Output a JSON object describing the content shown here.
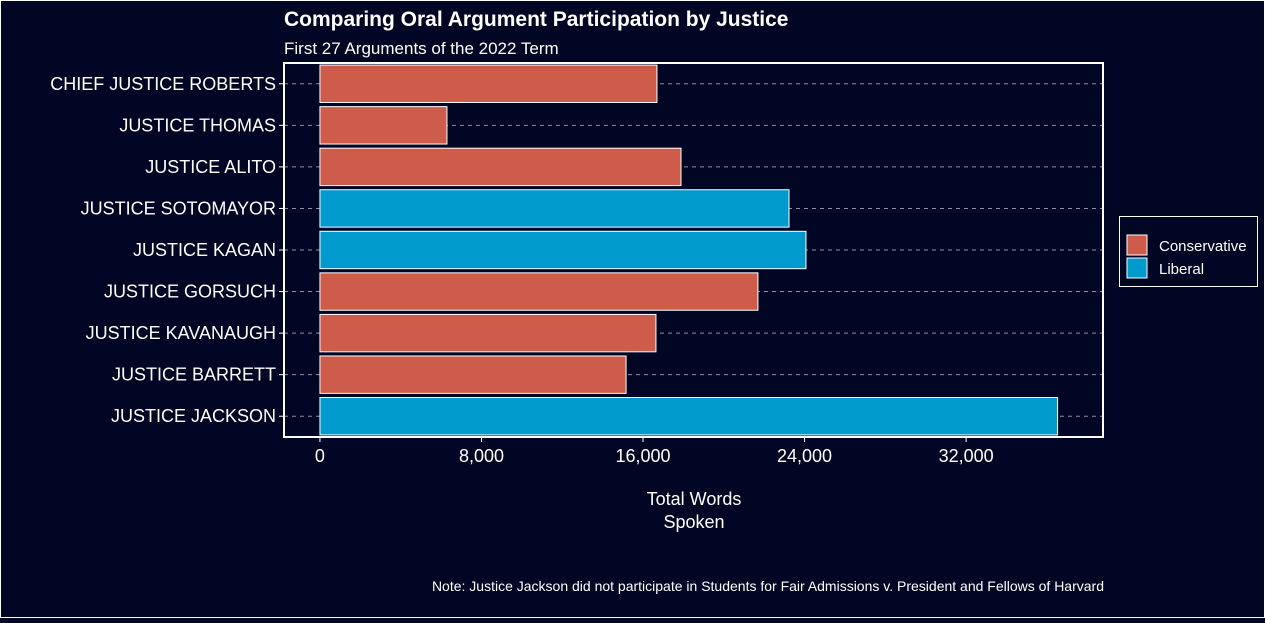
{
  "chart_data": {
    "type": "bar",
    "orientation": "horizontal",
    "title": "Comparing Oral Argument Participation by Justice",
    "subtitle": "First 27 Arguments of the 2022 Term",
    "xlabel_lines": [
      "Total Words",
      "Spoken"
    ],
    "ylabel": "",
    "caption": "Note: Justice Jackson did not participate in Students for Fair Admissions v. President and Fellows of Harvard",
    "categories": [
      "CHIEF JUSTICE ROBERTS",
      "JUSTICE THOMAS",
      "JUSTICE ALITO",
      "JUSTICE SOTOMAYOR",
      "JUSTICE KAGAN",
      "JUSTICE GORSUCH",
      "JUSTICE KAVANAUGH",
      "JUSTICE BARRETT",
      "JUSTICE JACKSON"
    ],
    "values": [
      16690,
      6290,
      17880,
      23230,
      24070,
      21690,
      16640,
      15160,
      36530
    ],
    "groups": [
      "Conservative",
      "Conservative",
      "Conservative",
      "Liberal",
      "Liberal",
      "Conservative",
      "Conservative",
      "Conservative",
      "Liberal"
    ],
    "xticks": [
      0,
      8000,
      16000,
      24000,
      32000
    ],
    "xtick_labels": [
      "0",
      "8,000",
      "16,000",
      "24,000",
      "32,000"
    ],
    "xlim": [
      -1780,
      38780
    ],
    "grid": "horizontal dashed",
    "legend": {
      "placement": "right",
      "entries": [
        {
          "label": "Conservative",
          "color": "#cd5c4a"
        },
        {
          "label": "Liberal",
          "color": "#009acd"
        }
      ]
    },
    "colors": {
      "background": "#000623",
      "Conservative": "#cd5c4a",
      "Liberal": "#009acd"
    }
  }
}
